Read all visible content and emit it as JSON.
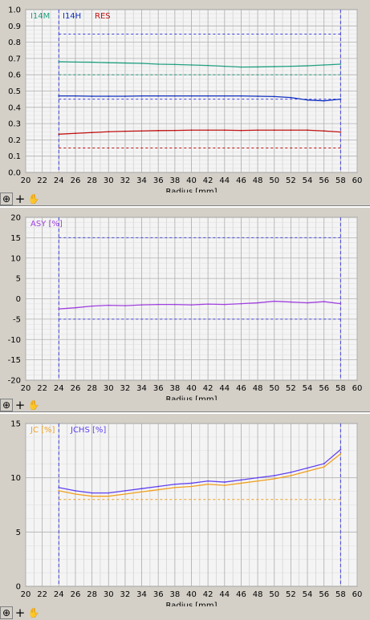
{
  "x_axis_label": "Radius [mm]",
  "toolbar": {
    "zoom_icon": "zoom-icon",
    "crosshair_icon": "crosshair-icon",
    "hand_icon": "hand-pan-icon"
  },
  "colors": {
    "I14M": "#20a080",
    "I14H": "#1030c0",
    "RES": "#c01010",
    "ASY": "#a040e0",
    "JC": "#f0a020",
    "JCHS": "#6040f0",
    "limit": "#4040e0",
    "grid": "#c8c8c8",
    "plot_bg": "#f4f4f4"
  },
  "chart_data": [
    {
      "type": "line",
      "x": [
        24,
        26,
        28,
        30,
        32,
        34,
        36,
        38,
        40,
        42,
        44,
        46,
        48,
        50,
        52,
        54,
        56,
        58
      ],
      "xlim": [
        20,
        60
      ],
      "xticks": [
        20,
        22,
        24,
        26,
        28,
        30,
        32,
        34,
        36,
        38,
        40,
        42,
        44,
        46,
        48,
        50,
        52,
        54,
        56,
        58,
        60
      ],
      "xlabel": "Radius [mm]",
      "ylim": [
        0,
        1.0
      ],
      "yticks": [
        0.0,
        0.1,
        0.2,
        0.3,
        0.4,
        0.5,
        0.6,
        0.7,
        0.8,
        0.9,
        1.0
      ],
      "grid": true,
      "legend_position": "top-left",
      "series": [
        {
          "name": "I14M",
          "values": [
            0.68,
            0.678,
            0.677,
            0.674,
            0.672,
            0.67,
            0.665,
            0.663,
            0.66,
            0.657,
            0.652,
            0.647,
            0.648,
            0.65,
            0.652,
            0.655,
            0.66,
            0.665
          ]
        },
        {
          "name": "I14H",
          "values": [
            0.47,
            0.47,
            0.468,
            0.468,
            0.468,
            0.47,
            0.47,
            0.47,
            0.47,
            0.47,
            0.47,
            0.47,
            0.468,
            0.466,
            0.46,
            0.445,
            0.44,
            0.45
          ]
        },
        {
          "name": "RES",
          "values": [
            0.235,
            0.24,
            0.245,
            0.25,
            0.253,
            0.255,
            0.257,
            0.258,
            0.26,
            0.26,
            0.26,
            0.258,
            0.26,
            0.26,
            0.26,
            0.26,
            0.255,
            0.248
          ]
        }
      ],
      "limits": [
        0.85,
        0.6,
        0.45,
        0.15
      ],
      "vlines": [
        24,
        58
      ]
    },
    {
      "type": "line",
      "x": [
        24,
        26,
        28,
        30,
        32,
        34,
        36,
        38,
        40,
        42,
        44,
        46,
        48,
        50,
        52,
        54,
        56,
        58
      ],
      "xlim": [
        20,
        60
      ],
      "xticks": [
        20,
        22,
        24,
        26,
        28,
        30,
        32,
        34,
        36,
        38,
        40,
        42,
        44,
        46,
        48,
        50,
        52,
        54,
        56,
        58,
        60
      ],
      "xlabel": "Radius [mm]",
      "ylim": [
        -20,
        20
      ],
      "yticks": [
        -20,
        -15,
        -10,
        -5,
        0,
        5,
        10,
        15,
        20
      ],
      "grid": true,
      "legend_position": "top-left",
      "series": [
        {
          "name": "ASY [%]",
          "values": [
            -2.5,
            -2.2,
            -1.8,
            -1.6,
            -1.7,
            -1.5,
            -1.4,
            -1.4,
            -1.5,
            -1.3,
            -1.4,
            -1.2,
            -1.0,
            -0.6,
            -0.8,
            -1.0,
            -0.7,
            -1.2
          ]
        }
      ],
      "limits": [
        15,
        -5
      ],
      "vlines": [
        24,
        58
      ]
    },
    {
      "type": "line",
      "x": [
        24,
        26,
        28,
        30,
        32,
        34,
        36,
        38,
        40,
        42,
        44,
        46,
        48,
        50,
        52,
        54,
        56,
        58
      ],
      "xlim": [
        20,
        60
      ],
      "xticks": [
        20,
        22,
        24,
        26,
        28,
        30,
        32,
        34,
        36,
        38,
        40,
        42,
        44,
        46,
        48,
        50,
        52,
        54,
        56,
        58,
        60
      ],
      "xlabel": "Radius [mm]",
      "ylim": [
        0,
        15
      ],
      "yticks": [
        0,
        5,
        10,
        15
      ],
      "grid": true,
      "legend_position": "top-left",
      "series": [
        {
          "name": "JC [%]",
          "values": [
            8.8,
            8.5,
            8.3,
            8.3,
            8.5,
            8.7,
            8.9,
            9.1,
            9.2,
            9.4,
            9.3,
            9.5,
            9.7,
            9.9,
            10.2,
            10.6,
            11.0,
            12.2
          ]
        },
        {
          "name": "JCHS [%]",
          "values": [
            9.1,
            8.8,
            8.6,
            8.6,
            8.8,
            9.0,
            9.2,
            9.4,
            9.5,
            9.7,
            9.6,
            9.8,
            10.0,
            10.2,
            10.5,
            10.9,
            11.3,
            12.6
          ]
        }
      ],
      "limits": [
        8.0
      ],
      "vlines": [
        24,
        58
      ]
    }
  ]
}
